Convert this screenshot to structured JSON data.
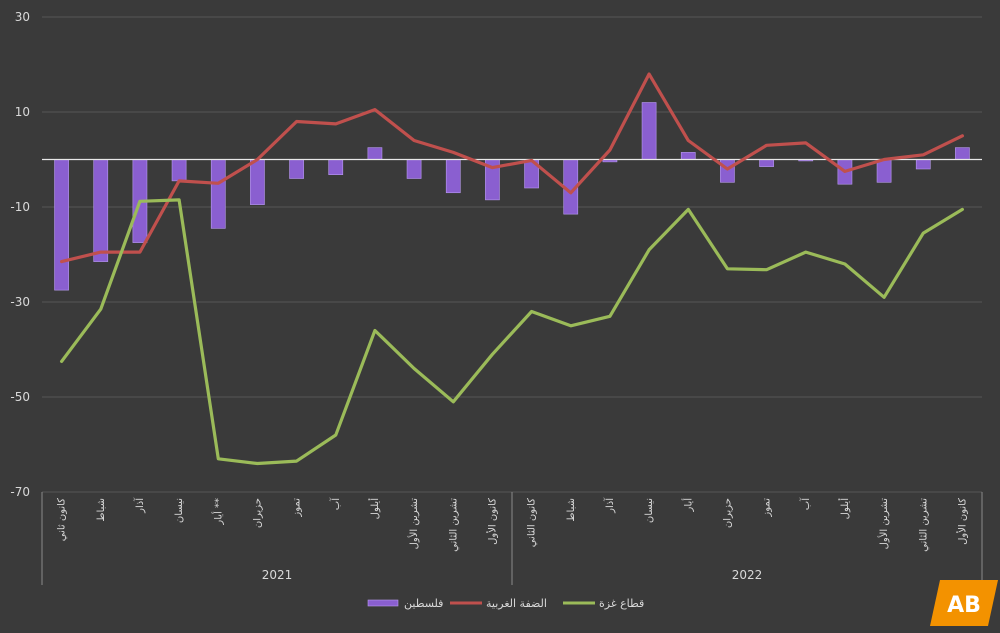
{
  "chart_data": {
    "type": "bar+line",
    "categories": [
      "كانون ثاني",
      "شباط",
      "آذار",
      "نيسان",
      "أيار **",
      "حزيران",
      "تموز",
      "آب",
      "أيلول",
      "تشرين الأول",
      "تشرين الثاني",
      "كانون الأول",
      "كانون الثاني",
      "شباط",
      "آذار",
      "نيسان",
      "أيار",
      "حزيران",
      "تموز",
      "آب",
      "أيلول",
      "تشرين الأول",
      "تشرين الثاني",
      "كانون الأول"
    ],
    "groups": [
      {
        "label": "2021",
        "start": 0,
        "end": 11
      },
      {
        "label": "2022",
        "start": 12,
        "end": 23
      }
    ],
    "ylim": [
      -70,
      30
    ],
    "yticks": [
      30,
      10,
      -10,
      -30,
      -50,
      -70
    ],
    "series": [
      {
        "name": "فلسطين",
        "type": "bar",
        "color": "#8a5fd0",
        "values": [
          -27.5,
          -21.5,
          -17.5,
          -4.5,
          -14.5,
          -9.5,
          -4,
          -3.2,
          2.5,
          -4,
          -7,
          -8.5,
          -6,
          -11.5,
          -0.5,
          12,
          1.5,
          -4.8,
          -1.5,
          -0.3,
          -5.2,
          -4.8,
          -2,
          2.5
        ]
      },
      {
        "name": "الضفة الغربية",
        "type": "line",
        "color": "#c0504d",
        "values": [
          -21.5,
          -19.5,
          -19.5,
          -4.5,
          -5,
          0,
          8,
          7.5,
          10.5,
          4,
          1.5,
          -1.7,
          -0.2,
          -7,
          2,
          18,
          4,
          -2,
          3,
          3.5,
          -2.5,
          0,
          1,
          5
        ]
      },
      {
        "name": "قطاع غزة",
        "type": "line",
        "color": "#9bbb59",
        "values": [
          -42.5,
          -31.5,
          -8.8,
          -8.5,
          -63,
          -64,
          -63.5,
          -58,
          -36,
          -44,
          -51,
          -41,
          -32,
          -35,
          -33,
          -19,
          -10.5,
          -23,
          -23.2,
          -19.5,
          -22,
          -29,
          -15.5,
          -10.5
        ]
      }
    ],
    "legend": {
      "placement": "bottom"
    }
  },
  "logo": {
    "text": "AB"
  }
}
